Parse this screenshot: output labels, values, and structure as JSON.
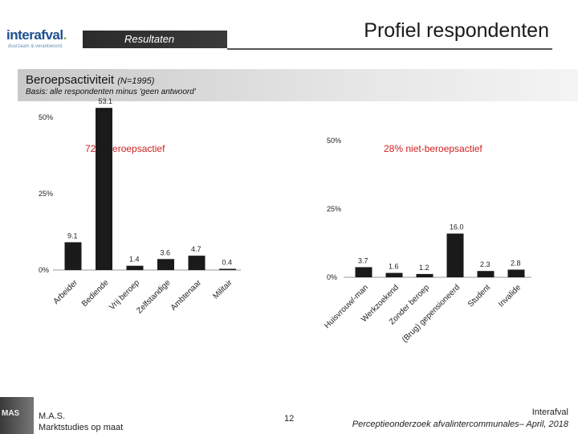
{
  "logo": {
    "name": "interafval",
    "tagline": "duurzaam & verantwoord"
  },
  "header": {
    "section_label": "Resultaten",
    "title": "Profiel respondenten"
  },
  "subheader": {
    "title": "Beroepsactiviteit",
    "n_label": "(N=1995)",
    "basis": "Basis: alle respondenten minus 'geen antwoord'"
  },
  "groups": {
    "left": "72% beroepsactief",
    "right": "28% niet-beroepsactief"
  },
  "footer": {
    "badge": "MAS",
    "company_line1": "M.A.S.",
    "company_line2": "Marktstudies op maat",
    "page": "12",
    "right_line1": "Interafval",
    "right_line2": "Perceptieonderzoek afvalintercommunales– April, 2018"
  },
  "colors": {
    "bar": "#1a1a1a",
    "heading_red": "#d02020",
    "axis": "#999999"
  },
  "chart_data": [
    {
      "type": "bar",
      "categories": [
        "Arbeider",
        "Bediende",
        "Vrij beroep",
        "Zelfstandige",
        "Ambtenaar",
        "Militair"
      ],
      "values": [
        9.1,
        53.1,
        1.4,
        3.6,
        4.7,
        0.4
      ],
      "tick_labels": [
        "0%",
        "25%",
        "50%"
      ],
      "ylim": [
        0,
        60
      ],
      "grid": false
    },
    {
      "type": "bar",
      "categories": [
        "Huisvrouw/-man",
        "Werkzoekend",
        "Zonder beroep",
        "(Brug) gepensioneerd",
        "Student",
        "Invalide"
      ],
      "values": [
        3.7,
        1.6,
        1.2,
        16.0,
        2.3,
        2.8
      ],
      "tick_labels": [
        "0%",
        "25%",
        "50%"
      ],
      "ylim": [
        0,
        60
      ],
      "grid": false
    }
  ]
}
